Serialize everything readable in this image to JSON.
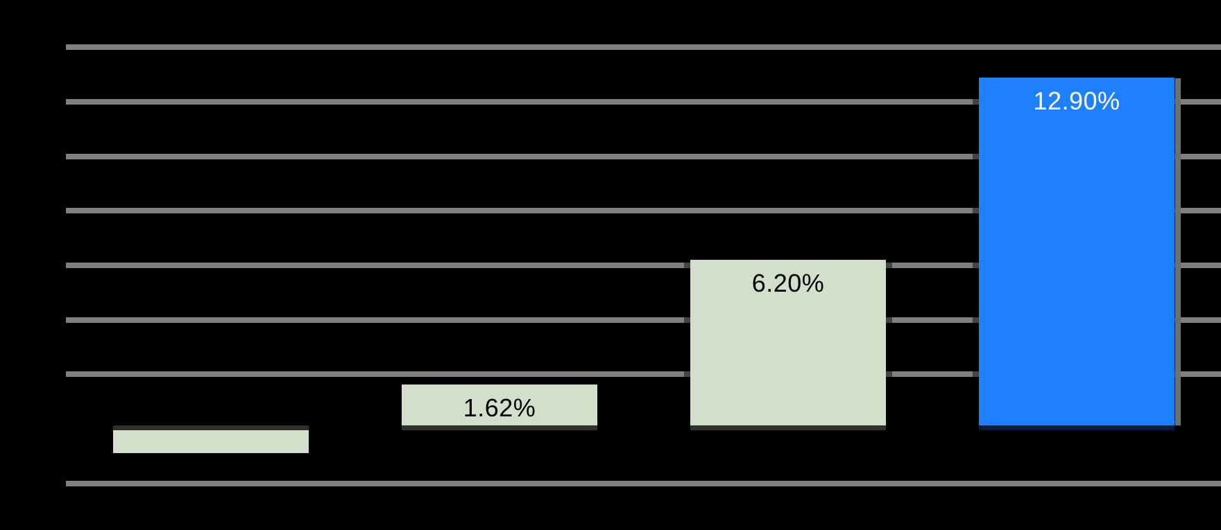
{
  "chart_data": {
    "type": "bar",
    "categories": [
      "",
      "",
      "",
      ""
    ],
    "values": [
      -0.9,
      1.62,
      6.2,
      12.9
    ],
    "estimated_values": [
      true,
      false,
      false,
      false
    ],
    "data_labels": [
      "",
      "1.62%",
      "6.20%",
      "12.90%"
    ],
    "title": "",
    "xlabel": "",
    "ylabel": "",
    "ylim": [
      -2,
      14
    ],
    "grid_step": 2,
    "grid_values": [
      14,
      12,
      10,
      8,
      6,
      4,
      2,
      -2
    ],
    "grid": true,
    "legend": "none",
    "bar_colors": [
      "#d2dfca",
      "#d2dfca",
      "#d2dfca",
      "#1f80ff"
    ],
    "label_colors": [
      "#000000",
      "#000000",
      "#000000",
      "#ffffff"
    ],
    "highlighted_bar_index": 3,
    "background_color": "#000000",
    "gridline_color": "#7f7f7f",
    "axis_line_visible_as": "dark band across bars at zero line",
    "shadow_stripe_color": "#6f6f6f"
  }
}
